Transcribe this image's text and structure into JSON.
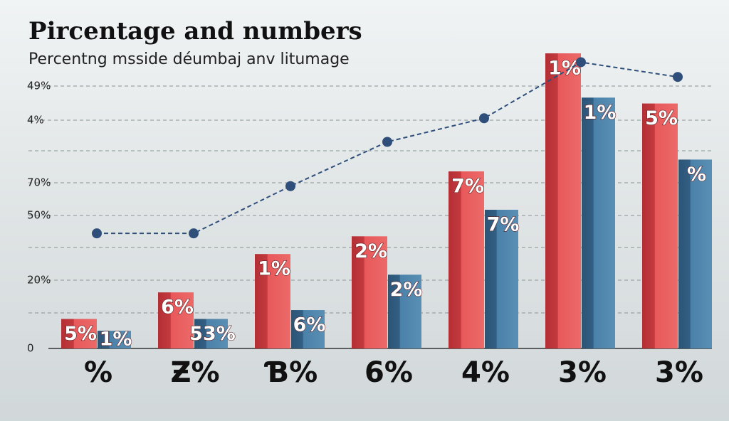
{
  "chart_data": {
    "type": "bar",
    "title": "Pircentage and numbers",
    "subtitle": "Percentng msside déumbaj anv litumage",
    "categories": [
      "%",
      "Ƶ%",
      "Ɓ%",
      "6%",
      "4%",
      "3%",
      "3%"
    ],
    "ylim": [
      0,
      100
    ],
    "y_axis_labels": [
      "49%",
      "4%",
      "70%",
      "50%",
      "20%",
      "0"
    ],
    "grid": true,
    "series": [
      {
        "color": "#e0484c",
        "values": [
          10,
          19,
          32,
          38,
          60,
          100,
          83
        ],
        "labels": [
          "5%",
          "6%",
          "1%",
          "2%",
          "7%",
          "1%",
          "5%"
        ]
      },
      {
        "color": "#3f7398",
        "values": [
          6,
          10,
          13,
          25,
          47,
          85,
          64
        ],
        "labels": [
          "1%",
          "53%",
          "6%",
          "2%",
          "7%",
          "1%",
          "%"
        ]
      }
    ],
    "line": {
      "color": "#2f4f7a",
      "values": [
        39,
        39,
        55,
        70,
        78,
        97,
        92
      ]
    }
  }
}
